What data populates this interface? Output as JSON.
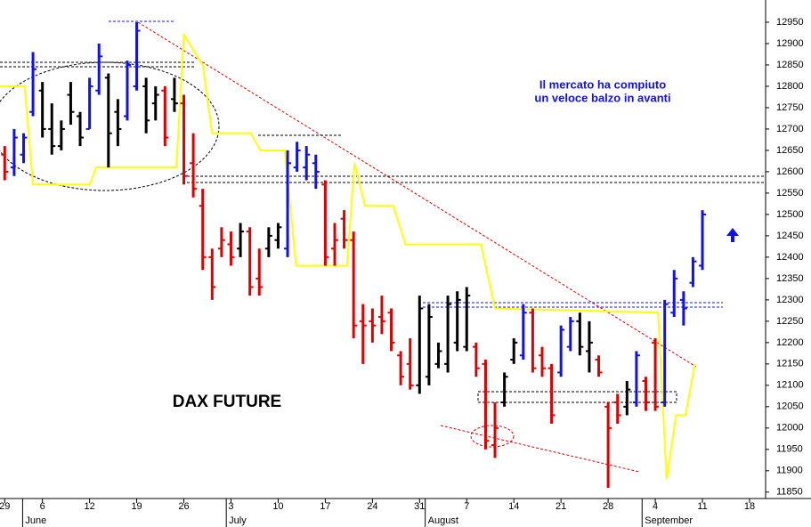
{
  "chart_data": {
    "type": "ohlc",
    "title": "DAX FUTURE",
    "annotations": [
      "Il mercato ha compiuto",
      "un veloce balzo in avanti"
    ],
    "x": [
      0,
      1,
      2,
      3,
      4,
      5,
      6,
      7,
      8,
      9,
      10,
      11,
      12,
      13,
      14,
      15,
      16,
      17,
      18,
      19,
      20,
      21,
      22,
      23,
      24,
      25,
      26,
      27,
      28,
      29,
      30,
      31,
      32,
      33,
      34,
      35,
      36,
      37,
      38,
      39,
      40,
      41,
      42,
      43,
      44,
      45,
      46,
      47,
      48,
      49,
      50,
      51,
      52,
      53,
      54,
      55,
      56,
      57,
      58,
      59,
      60,
      61,
      62,
      63,
      64,
      65,
      66,
      67,
      68,
      69,
      70,
      71,
      72,
      73,
      74
    ],
    "high": [
      12660,
      12700,
      12690,
      12880,
      12810,
      12760,
      12720,
      12810,
      12740,
      12820,
      12900,
      12830,
      12770,
      12860,
      12950,
      12820,
      12800,
      12800,
      12820,
      12780,
      12690,
      12560,
      12420,
      12470,
      12460,
      12480,
      12470,
      12420,
      12470,
      12480,
      12650,
      12670,
      12660,
      12640,
      12580,
      12480,
      12510,
      12460,
      12290,
      12280,
      12310,
      12280,
      12180,
      12210,
      12310,
      12290,
      12200,
      12310,
      12320,
      12330,
      12200,
      12160,
      12060,
      12130,
      12210,
      12290,
      12280,
      12190,
      12150,
      12240,
      12260,
      12270,
      12250,
      12170,
      12060,
      12080,
      12110,
      12180,
      12120,
      12210,
      12300,
      12370,
      12320,
      12400,
      12510
    ],
    "low": [
      12580,
      12590,
      12620,
      12730,
      12680,
      12640,
      12650,
      12710,
      12660,
      12700,
      12780,
      12610,
      12660,
      12720,
      12790,
      12690,
      12720,
      12660,
      12740,
      12570,
      12540,
      12370,
      12300,
      12400,
      12380,
      12400,
      12310,
      12310,
      12400,
      12420,
      12400,
      12600,
      12580,
      12560,
      12380,
      12380,
      12420,
      12210,
      12150,
      12200,
      12220,
      12180,
      12100,
      12090,
      12080,
      12100,
      12140,
      12130,
      12180,
      12180,
      12120,
      11950,
      11930,
      12050,
      12150,
      12160,
      12130,
      12120,
      12010,
      12120,
      12180,
      12170,
      12130,
      12120,
      11860,
      12010,
      12030,
      12050,
      12040,
      12040,
      12050,
      12260,
      12240,
      12330,
      12370
    ],
    "open": [
      12640,
      12610,
      12640,
      12740,
      12790,
      12700,
      12660,
      12780,
      12730,
      12700,
      12790,
      12820,
      12740,
      12730,
      12800,
      12800,
      12760,
      12790,
      12770,
      12760,
      12620,
      12520,
      12400,
      12420,
      12430,
      12420,
      12460,
      12350,
      12420,
      12440,
      12420,
      12610,
      12610,
      12620,
      12570,
      12420,
      12490,
      12440,
      12250,
      12250,
      12260,
      12270,
      12170,
      12150,
      12100,
      12120,
      12150,
      12150,
      12200,
      12190,
      12190,
      12150,
      11960,
      12060,
      12160,
      12170,
      12270,
      12170,
      12140,
      12130,
      12190,
      12250,
      12180,
      12160,
      12050,
      12060,
      12050,
      12060,
      12110,
      12200,
      12060,
      12270,
      12300,
      12340,
      12380
    ],
    "close": [
      12600,
      12680,
      12680,
      12840,
      12700,
      12660,
      12700,
      12740,
      12680,
      12800,
      12870,
      12690,
      12700,
      12850,
      12930,
      12720,
      12780,
      12680,
      12760,
      12590,
      12560,
      12400,
      12330,
      12440,
      12400,
      12460,
      12330,
      12330,
      12450,
      12470,
      12620,
      12650,
      12640,
      12600,
      12400,
      12440,
      12440,
      12240,
      12240,
      12240,
      12250,
      12200,
      12120,
      12100,
      12280,
      12260,
      12180,
      12290,
      12300,
      12310,
      12140,
      11970,
      12000,
      12120,
      12200,
      12270,
      12140,
      12140,
      12030,
      12230,
      12250,
      12190,
      12200,
      12130,
      12000,
      12030,
      12090,
      12170,
      12060,
      12050,
      12290,
      12350,
      12280,
      12390,
      12500
    ],
    "colors": [
      "#e00000",
      "#1010f0",
      "#1010f0",
      "#1010f0",
      "#000000",
      "#000000",
      "#000000",
      "#000000",
      "#000000",
      "#1010f0",
      "#1010f0",
      "#000000",
      "#000000",
      "#1010f0",
      "#1010f0",
      "#000000",
      "#000000",
      "#e00000",
      "#000000",
      "#e00000",
      "#e00000",
      "#e00000",
      "#e00000",
      "#e00000",
      "#e00000",
      "#000000",
      "#e00000",
      "#e00000",
      "#000000",
      "#000000",
      "#1010f0",
      "#1010f0",
      "#1010f0",
      "#1010f0",
      "#e00000",
      "#e00000",
      "#e00000",
      "#e00000",
      "#e00000",
      "#e00000",
      "#e00000",
      "#e00000",
      "#e00000",
      "#e00000",
      "#000000",
      "#000000",
      "#000000",
      "#000000",
      "#000000",
      "#000000",
      "#e00000",
      "#e00000",
      "#e00000",
      "#000000",
      "#000000",
      "#1010f0",
      "#e00000",
      "#e00000",
      "#e00000",
      "#1010f0",
      "#1010f0",
      "#000000",
      "#000000",
      "#e00000",
      "#e00000",
      "#e00000",
      "#000000",
      "#1010f0",
      "#e00000",
      "#e00000",
      "#1010f0",
      "#1010f0",
      "#1010f0",
      "#1010f0",
      "#1010f0"
    ],
    "stop_line": {
      "color": "#ffff00",
      "x": [
        -0.5,
        2.1,
        3.0,
        9.0,
        9.7,
        18.2,
        19.0,
        21.0,
        22.0,
        26.1,
        27.1,
        29.7,
        30.9,
        36.3,
        37.1,
        38.2,
        41.2,
        42.5,
        50.5,
        52.0,
        69.3,
        70.2,
        71.2,
        72.2,
        73.2
      ],
      "values": [
        12800,
        12800,
        12570,
        12570,
        12610,
        12610,
        12920,
        12850,
        12690,
        12690,
        12650,
        12650,
        12380,
        12380,
        12620,
        12520,
        12520,
        12430,
        12430,
        12280,
        12270,
        11880,
        12030,
        12030,
        12150
      ]
    },
    "xlim": [
      -0.5,
      80.7
    ],
    "ylim": [
      11835,
      13002
    ],
    "yticks": [
      11850,
      11900,
      11950,
      12000,
      12050,
      12100,
      12150,
      12200,
      12250,
      12300,
      12350,
      12400,
      12450,
      12500,
      12550,
      12600,
      12650,
      12700,
      12750,
      12800,
      12850,
      12900,
      12950
    ],
    "xticks": [
      {
        "value": 0,
        "label": "29"
      },
      {
        "value": 4,
        "label": "6"
      },
      {
        "value": 9,
        "label": "12"
      },
      {
        "value": 14,
        "label": "19"
      },
      {
        "value": 19,
        "label": "26"
      },
      {
        "value": 24,
        "label": "3"
      },
      {
        "value": 29,
        "label": "10"
      },
      {
        "value": 34,
        "label": "17"
      },
      {
        "value": 39,
        "label": "24"
      },
      {
        "value": 44,
        "label": "31"
      },
      {
        "value": 49,
        "label": "7"
      },
      {
        "value": 54,
        "label": "14"
      },
      {
        "value": 59,
        "label": "21"
      },
      {
        "value": 64,
        "label": "28"
      },
      {
        "value": 69,
        "label": "4"
      },
      {
        "value": 74,
        "label": "11"
      },
      {
        "value": 79,
        "label": "18"
      }
    ],
    "months": [
      {
        "value": 1.9,
        "label": "June"
      },
      {
        "value": 23.5,
        "label": "July"
      },
      {
        "value": 44.6,
        "label": "August"
      },
      {
        "value": 67.6,
        "label": "September"
      }
    ]
  }
}
